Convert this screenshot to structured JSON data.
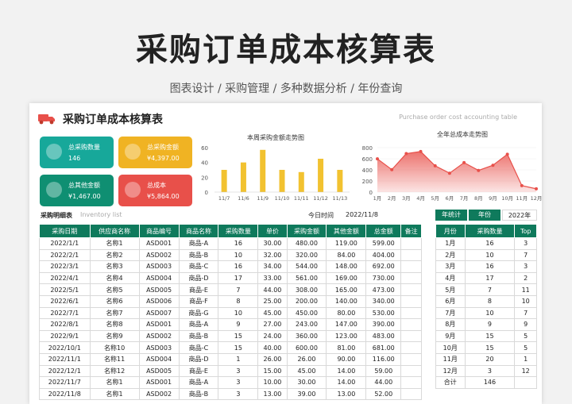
{
  "hero": {
    "title": "采购订单成本核算表",
    "subtitle": "图表设计 / 采购管理 / 多种数据分析 / 年份查询"
  },
  "sheet": {
    "title": "采购订单成本核算表",
    "subtitle_en": "Purchase order cost accounting table"
  },
  "kpis": [
    {
      "label": "总采购数量",
      "value": "146",
      "color": "#17a89a",
      "icon": "stack-icon"
    },
    {
      "label": "总采购金额",
      "value": "¥4,397.00",
      "color": "#f0b323",
      "icon": "money-icon"
    },
    {
      "label": "总其他金额",
      "value": "¥1,467.00",
      "color": "#0f8f72",
      "icon": "database-icon"
    },
    {
      "label": "总成本",
      "value": "¥5,864.00",
      "color": "#e8504a",
      "icon": "wallet-icon"
    }
  ],
  "chart_data": [
    {
      "type": "bar",
      "title": "本周采购金额走势图",
      "categories": [
        "11/7",
        "11/6",
        "11/9",
        "11/10",
        "11/11",
        "11/12",
        "11/13"
      ],
      "values": [
        30,
        40,
        57,
        30,
        27,
        45,
        30
      ],
      "ylim": [
        0,
        60
      ],
      "yticks": [
        0,
        20,
        40,
        60
      ],
      "color": "#f2c230"
    },
    {
      "type": "area",
      "title": "全年总成本走势图",
      "categories": [
        "1月",
        "2月",
        "3月",
        "4月",
        "5月",
        "6月",
        "7月",
        "8月",
        "9月",
        "10月",
        "11月",
        "12月"
      ],
      "values": [
        599,
        404,
        692,
        730,
        473,
        340,
        530,
        390,
        483,
        681,
        116,
        59
      ],
      "ylim": [
        0,
        800
      ],
      "yticks": [
        0,
        200,
        400,
        600,
        800
      ],
      "color": "#e8504a"
    }
  ],
  "detail": {
    "label": "采购明细表",
    "label_en": "Inventory list",
    "today_label": "今日时间",
    "today_value": "2022/11/8",
    "headers": [
      "采购日期",
      "供应商名称",
      "商品编号",
      "商品名称",
      "采购数量",
      "单价",
      "采购金额",
      "其他金额",
      "总金额",
      "备注"
    ],
    "rows": [
      [
        "2022/1/1",
        "名称1",
        "ASD001",
        "商品-A",
        "16",
        "30.00",
        "480.00",
        "119.00",
        "599.00",
        ""
      ],
      [
        "2022/2/1",
        "名称2",
        "ASD002",
        "商品-B",
        "10",
        "32.00",
        "320.00",
        "84.00",
        "404.00",
        ""
      ],
      [
        "2022/3/1",
        "名称3",
        "ASD003",
        "商品-C",
        "16",
        "34.00",
        "544.00",
        "148.00",
        "692.00",
        ""
      ],
      [
        "2022/4/1",
        "名称4",
        "ASD004",
        "商品-D",
        "17",
        "33.00",
        "561.00",
        "169.00",
        "730.00",
        ""
      ],
      [
        "2022/5/1",
        "名称5",
        "ASD005",
        "商品-E",
        "7",
        "44.00",
        "308.00",
        "165.00",
        "473.00",
        ""
      ],
      [
        "2022/6/1",
        "名称6",
        "ASD006",
        "商品-F",
        "8",
        "25.00",
        "200.00",
        "140.00",
        "340.00",
        ""
      ],
      [
        "2022/7/1",
        "名称7",
        "ASD007",
        "商品-G",
        "10",
        "45.00",
        "450.00",
        "80.00",
        "530.00",
        ""
      ],
      [
        "2022/8/1",
        "名称8",
        "ASD001",
        "商品-A",
        "9",
        "27.00",
        "243.00",
        "147.00",
        "390.00",
        ""
      ],
      [
        "2022/9/1",
        "名称9",
        "ASD002",
        "商品-B",
        "15",
        "24.00",
        "360.00",
        "123.00",
        "483.00",
        ""
      ],
      [
        "2022/10/1",
        "名称10",
        "ASD003",
        "商品-C",
        "15",
        "40.00",
        "600.00",
        "81.00",
        "681.00",
        ""
      ],
      [
        "2022/11/1",
        "名称11",
        "ASD004",
        "商品-D",
        "1",
        "26.00",
        "26.00",
        "90.00",
        "116.00",
        ""
      ],
      [
        "2022/12/1",
        "名称12",
        "ASD005",
        "商品-E",
        "3",
        "15.00",
        "45.00",
        "14.00",
        "59.00",
        ""
      ],
      [
        "2022/11/7",
        "名称1",
        "ASD001",
        "商品-A",
        "3",
        "10.00",
        "30.00",
        "14.00",
        "44.00",
        ""
      ],
      [
        "2022/11/8",
        "名称1",
        "ASD002",
        "商品-B",
        "3",
        "13.00",
        "39.00",
        "13.00",
        "52.00",
        ""
      ]
    ]
  },
  "yearly": {
    "label": "年统计",
    "year_label": "年份",
    "year_value": "2022年",
    "headers": [
      "月份",
      "采购数量",
      "Top"
    ],
    "rows": [
      [
        "1月",
        "16",
        "3"
      ],
      [
        "2月",
        "10",
        "7"
      ],
      [
        "3月",
        "16",
        "3"
      ],
      [
        "4月",
        "17",
        "2"
      ],
      [
        "5月",
        "7",
        "11"
      ],
      [
        "6月",
        "8",
        "10"
      ],
      [
        "7月",
        "10",
        "7"
      ],
      [
        "8月",
        "9",
        "9"
      ],
      [
        "9月",
        "15",
        "5"
      ],
      [
        "10月",
        "15",
        "5"
      ],
      [
        "11月",
        "20",
        "1"
      ],
      [
        "12月",
        "3",
        "12"
      ],
      [
        "合计",
        "146",
        ""
      ]
    ]
  }
}
